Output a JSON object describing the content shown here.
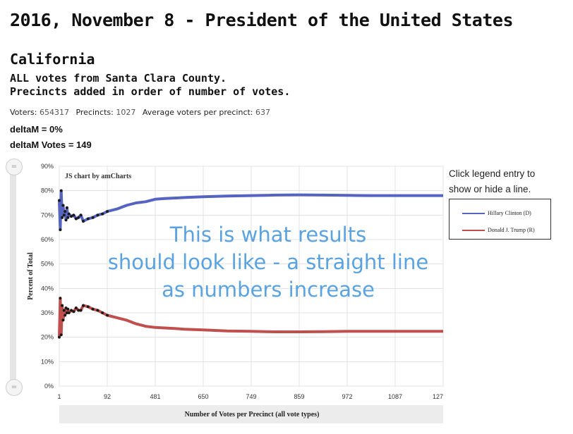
{
  "header": {
    "title": "2016, November 8 - President of the United States",
    "state": "California",
    "subtitle_line1": "ALL votes from Santa Clara County.",
    "subtitle_line2": "Precincts added in order of number of votes."
  },
  "stats": {
    "voters_label": "Voters:",
    "voters_value": "654317",
    "precincts_label": "Precincts:",
    "precincts_value": "1027",
    "avg_label": "Average voters per precinct:",
    "avg_value": "637"
  },
  "delta": {
    "deltaM": "deltaM = 0%",
    "deltaM_votes": "deltaM Votes = 149"
  },
  "legend_hint": "Click legend entry to show or hide a line.",
  "overlay_text": [
    "This is what results",
    "should look like - a straight line",
    "as numbers increase"
  ],
  "colors": {
    "clinton": "#5563c1",
    "trump": "#c0504d",
    "overlay": "#5aa3e0"
  },
  "chart_data": {
    "type": "line",
    "credit": "JS chart by amCharts",
    "xlabel": "Number of Votes per Precinct (all vote types)",
    "ylabel": "Percent of Total",
    "x_ticks": [
      "1",
      "92",
      "481",
      "650",
      "749",
      "859",
      "972",
      "1087",
      "127"
    ],
    "y_ticks": [
      "0%",
      "10%",
      "20%",
      "30%",
      "40%",
      "50%",
      "60%",
      "70%",
      "80%",
      "90%"
    ],
    "ylim": [
      0,
      90
    ],
    "grid": true,
    "legend_position": "right",
    "series": [
      {
        "name": "Hillary Clinton (D)",
        "color": "#5563c1",
        "values": [
          [
            0,
            76
          ],
          [
            0.02,
            64
          ],
          [
            0.04,
            80
          ],
          [
            0.06,
            69
          ],
          [
            0.08,
            74
          ],
          [
            0.1,
            70
          ],
          [
            0.12,
            71.5
          ],
          [
            0.14,
            68
          ],
          [
            0.16,
            73
          ],
          [
            0.18,
            69
          ],
          [
            0.2,
            70.5
          ],
          [
            0.25,
            69.5
          ],
          [
            0.3,
            70
          ],
          [
            0.35,
            68.5
          ],
          [
            0.4,
            69
          ],
          [
            0.45,
            70
          ],
          [
            0.5,
            67.5
          ],
          [
            0.6,
            68.5
          ],
          [
            0.7,
            69
          ],
          [
            0.8,
            70
          ],
          [
            0.9,
            70.5
          ],
          [
            1,
            71.5
          ],
          [
            1.2,
            72.5
          ],
          [
            1.4,
            74
          ],
          [
            1.6,
            75
          ],
          [
            1.8,
            75.5
          ],
          [
            2,
            76.5
          ],
          [
            2.2,
            76.8
          ],
          [
            2.4,
            77
          ],
          [
            2.6,
            77.2
          ],
          [
            3,
            77.5
          ],
          [
            3.5,
            77.8
          ],
          [
            4,
            78
          ],
          [
            4.5,
            78.2
          ],
          [
            5,
            78.3
          ],
          [
            5.5,
            78.2
          ],
          [
            6,
            78.1
          ],
          [
            6.5,
            78
          ],
          [
            7,
            78
          ],
          [
            7.5,
            78
          ],
          [
            8,
            78
          ]
        ]
      },
      {
        "name": "Donald J. Trump (R)",
        "color": "#c0504d",
        "values": [
          [
            0,
            20
          ],
          [
            0.02,
            36
          ],
          [
            0.04,
            21
          ],
          [
            0.06,
            33
          ],
          [
            0.08,
            27
          ],
          [
            0.1,
            31
          ],
          [
            0.12,
            29
          ],
          [
            0.14,
            32
          ],
          [
            0.16,
            30
          ],
          [
            0.18,
            31.5
          ],
          [
            0.2,
            30
          ],
          [
            0.25,
            31
          ],
          [
            0.3,
            30.5
          ],
          [
            0.35,
            32
          ],
          [
            0.4,
            31
          ],
          [
            0.45,
            31
          ],
          [
            0.5,
            33
          ],
          [
            0.6,
            32.5
          ],
          [
            0.7,
            31.5
          ],
          [
            0.8,
            31
          ],
          [
            0.9,
            30
          ],
          [
            1,
            29
          ],
          [
            1.2,
            28
          ],
          [
            1.4,
            27
          ],
          [
            1.6,
            25.5
          ],
          [
            1.8,
            24.5
          ],
          [
            2,
            24
          ],
          [
            2.2,
            23.8
          ],
          [
            2.4,
            23.6
          ],
          [
            2.6,
            23.3
          ],
          [
            3,
            23
          ],
          [
            3.5,
            22.6
          ],
          [
            4,
            22.4
          ],
          [
            4.5,
            22.2
          ],
          [
            5,
            22.2
          ],
          [
            5.5,
            22.3
          ],
          [
            6,
            22.4
          ],
          [
            6.5,
            22.4
          ],
          [
            7,
            22.4
          ],
          [
            7.5,
            22.4
          ],
          [
            8,
            22.4
          ]
        ]
      }
    ]
  }
}
